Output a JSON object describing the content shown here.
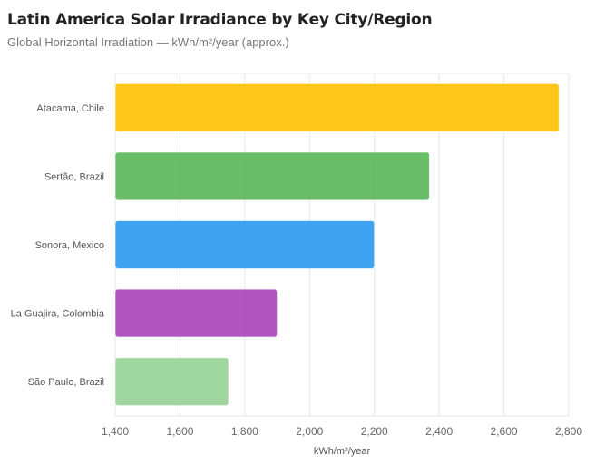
{
  "chart_data": {
    "type": "bar",
    "orientation": "horizontal",
    "title": "Latin America Solar Irradiance by Key City/Region",
    "subtitle": "Global Horizontal Irradiation — kWh/m²/year (approx.)",
    "xlabel": "kWh/m²/year",
    "ylabel": "",
    "categories": [
      "Atacama, Chile",
      "Sertão, Brazil",
      "Sonora, Mexico",
      "La Guajira, Colombia",
      "São Paulo, Brazil"
    ],
    "values": [
      2770,
      2370,
      2200,
      1900,
      1750
    ],
    "colors": [
      "#FFC107",
      "#5CB85C",
      "#2F9BF0",
      "#AB47BC",
      "#97D197"
    ],
    "xlim": [
      1400,
      2800
    ],
    "xticks": [
      "1,400",
      "1,600",
      "1,800",
      "2,000",
      "2,200",
      "2,400",
      "2,600",
      "2,800"
    ],
    "grid": true,
    "legend": "none"
  }
}
